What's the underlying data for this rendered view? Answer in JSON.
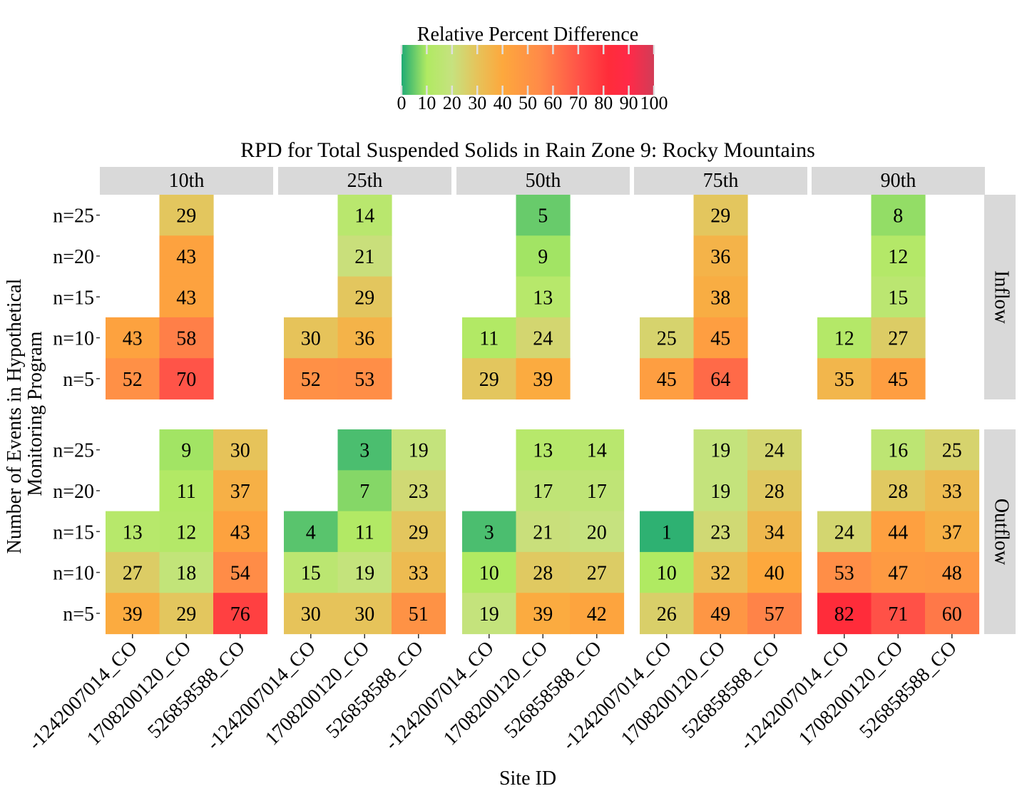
{
  "chart_data": {
    "type": "heatmap",
    "title": "RPD for Total Suspended Solids in Rain Zone 9: Rocky Mountains",
    "xlabel": "Site ID",
    "ylabel": [
      "Number of Events in Hypothetical",
      "Monitoring Program"
    ],
    "legend": {
      "title": "Relative Percent Difference",
      "placement": "top",
      "ticks": [
        0,
        10,
        20,
        30,
        40,
        50,
        60,
        70,
        80,
        90,
        100
      ],
      "range": [
        0,
        100
      ],
      "stops": [
        {
          "v": 0,
          "c": "#1fab74"
        },
        {
          "v": 10,
          "c": "#b0ea62"
        },
        {
          "v": 20,
          "c": "#c6e27f"
        },
        {
          "v": 30,
          "c": "#e6c35a"
        },
        {
          "v": 40,
          "c": "#fda83d"
        },
        {
          "v": 55,
          "c": "#ff8a48"
        },
        {
          "v": 70,
          "c": "#ff5448"
        },
        {
          "v": 82,
          "c": "#ff2c3a"
        },
        {
          "v": 90,
          "c": "#ff2a48"
        },
        {
          "v": 100,
          "c": "#d23c57"
        }
      ]
    },
    "percentiles": [
      "10th",
      "25th",
      "50th",
      "75th",
      "90th"
    ],
    "flows": [
      "Inflow",
      "Outflow"
    ],
    "sites": [
      "-1242007014_CO",
      "1708200120_CO",
      "526858588_CO"
    ],
    "events": [
      "n=25",
      "n=20",
      "n=15",
      "n=10",
      "n=5"
    ],
    "values": {
      "Inflow": {
        "10th": [
          [
            null,
            29,
            null
          ],
          [
            null,
            43,
            null
          ],
          [
            null,
            43,
            null
          ],
          [
            43,
            58,
            null
          ],
          [
            52,
            70,
            null
          ]
        ],
        "25th": [
          [
            null,
            14,
            null
          ],
          [
            null,
            21,
            null
          ],
          [
            null,
            29,
            null
          ],
          [
            30,
            36,
            null
          ],
          [
            52,
            53,
            null
          ]
        ],
        "50th": [
          [
            null,
            5,
            null
          ],
          [
            null,
            9,
            null
          ],
          [
            null,
            13,
            null
          ],
          [
            11,
            24,
            null
          ],
          [
            29,
            39,
            null
          ]
        ],
        "75th": [
          [
            null,
            29,
            null
          ],
          [
            null,
            36,
            null
          ],
          [
            null,
            38,
            null
          ],
          [
            25,
            45,
            null
          ],
          [
            45,
            64,
            null
          ]
        ],
        "90th": [
          [
            null,
            8,
            null
          ],
          [
            null,
            12,
            null
          ],
          [
            null,
            15,
            null
          ],
          [
            12,
            27,
            null
          ],
          [
            35,
            45,
            null
          ]
        ]
      },
      "Outflow": {
        "10th": [
          [
            null,
            9,
            30
          ],
          [
            null,
            11,
            37
          ],
          [
            13,
            12,
            43
          ],
          [
            27,
            18,
            54
          ],
          [
            39,
            29,
            76
          ]
        ],
        "25th": [
          [
            null,
            3,
            19
          ],
          [
            null,
            7,
            23
          ],
          [
            4,
            11,
            29
          ],
          [
            15,
            19,
            33
          ],
          [
            30,
            30,
            51
          ]
        ],
        "50th": [
          [
            null,
            13,
            14
          ],
          [
            null,
            17,
            17
          ],
          [
            3,
            21,
            20
          ],
          [
            10,
            28,
            27
          ],
          [
            19,
            39,
            42
          ]
        ],
        "75th": [
          [
            null,
            19,
            24
          ],
          [
            null,
            19,
            28
          ],
          [
            1,
            23,
            34
          ],
          [
            10,
            32,
            40
          ],
          [
            26,
            49,
            57
          ]
        ],
        "90th": [
          [
            null,
            16,
            25
          ],
          [
            null,
            28,
            33
          ],
          [
            24,
            44,
            37
          ],
          [
            53,
            47,
            48
          ],
          [
            82,
            71,
            60
          ]
        ]
      }
    }
  }
}
